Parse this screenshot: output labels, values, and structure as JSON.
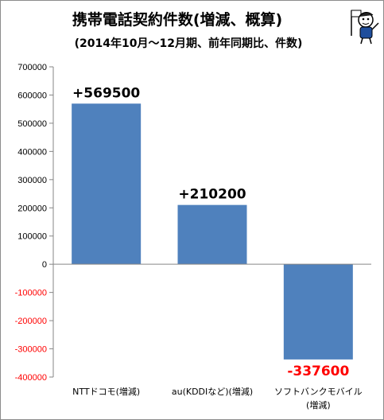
{
  "chart_data": {
    "type": "bar",
    "title": "携帯電話契約件数(増減、概算)",
    "subtitle": "(2014年10月～12月期、前年同期比、件数)",
    "categories": [
      [
        "NTTドコモ(増減)"
      ],
      [
        "au(KDDIなど)(増減)"
      ],
      [
        "ソフトバンクモバイル",
        "(増減)"
      ]
    ],
    "values": [
      569500,
      210200,
      -337600
    ],
    "data_labels": [
      "+569500",
      "+210200",
      "-337600"
    ],
    "ylim": [
      -400000,
      700000
    ],
    "yticks": [
      700000,
      600000,
      500000,
      400000,
      300000,
      200000,
      100000,
      0,
      -100000,
      -200000,
      -300000,
      -400000
    ],
    "ytick_labels": [
      "700000",
      "600000",
      "500000",
      "400000",
      "300000",
      "200000",
      "100000",
      "0",
      "-100000",
      "-200000",
      "-300000",
      "-400000"
    ],
    "grid": false,
    "legend": "none",
    "colors": {
      "bar": "#4f81bd",
      "positive_text": "#000000",
      "negative_text": "#ff0000",
      "axis": "#868686"
    }
  },
  "mascot": {
    "icon": "cartoon-character-with-flag-icon"
  }
}
